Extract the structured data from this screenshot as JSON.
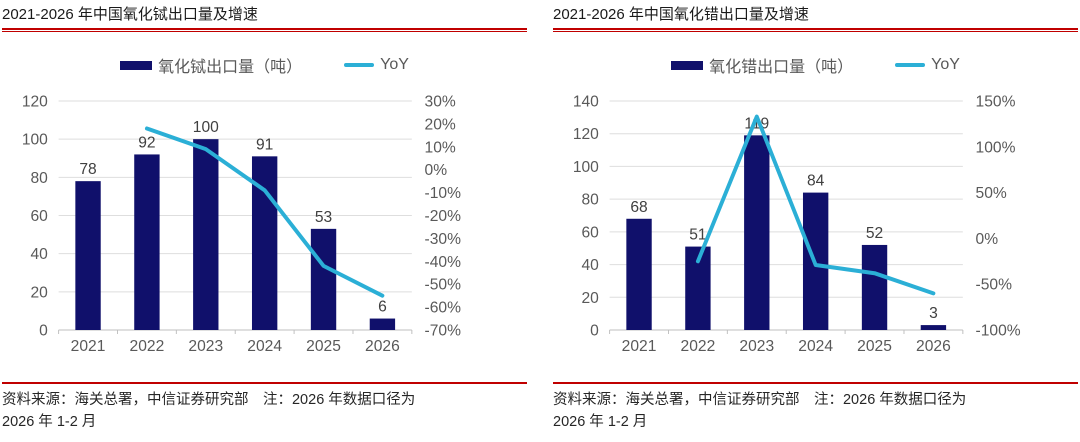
{
  "page": {
    "source_line1": "资料来源：海关总署，中信证券研究部　注：2026 年数据口径为",
    "source_line2": "2026 年 1-2 月"
  },
  "colors": {
    "bar": "#10106b",
    "line": "#2bafd6",
    "accent_red": "#c00000",
    "grid": "#dedede",
    "axis": "#bfbfbf",
    "title_text": "#1a1a1a",
    "axis_text": "#595959",
    "value_text": "#404040"
  },
  "charts": [
    {
      "title": "2021-2026 年中国氧化铽出口量及增速",
      "legend": {
        "bar_label": "氧化铽出口量（吨）",
        "line_label": "YoY"
      },
      "chart_data": {
        "type": "bar+line",
        "categories": [
          "2021",
          "2022",
          "2023",
          "2024",
          "2025",
          "2026"
        ],
        "series": [
          {
            "name": "氧化铽出口量（吨）",
            "type": "bar",
            "axis": "left",
            "values": [
              78,
              92,
              100,
              91,
              53,
              6
            ]
          },
          {
            "name": "YoY",
            "type": "line",
            "axis": "right",
            "unit": "%",
            "values": [
              null,
              18,
              9,
              -9,
              -42,
              -55
            ]
          }
        ],
        "left_axis": {
          "min": 0,
          "max": 120,
          "step": 20
        },
        "right_axis": {
          "min": -70,
          "max": 30,
          "ticks": [
            30,
            20,
            10,
            0,
            -10,
            -20,
            -30,
            -40,
            -50,
            -60,
            -70
          ]
        },
        "grid": true,
        "legend_position": "top"
      }
    },
    {
      "title": "2021-2026 年中国氧化错出口量及增速",
      "legend": {
        "bar_label": "氧化错出口量（吨）",
        "line_label": "YoY"
      },
      "chart_data": {
        "type": "bar+line",
        "categories": [
          "2021",
          "2022",
          "2023",
          "2024",
          "2025",
          "2026"
        ],
        "series": [
          {
            "name": "氧化错出口量（吨）",
            "type": "bar",
            "axis": "left",
            "values": [
              68,
              51,
              119,
              84,
              52,
              3
            ]
          },
          {
            "name": "YoY",
            "type": "line",
            "axis": "right",
            "unit": "%",
            "values": [
              null,
              -25,
              133,
              -29,
              -38,
              -60
            ]
          }
        ],
        "left_axis": {
          "min": 0,
          "max": 140,
          "step": 20
        },
        "right_axis": {
          "min": -100,
          "max": 150,
          "ticks": [
            150,
            100,
            50,
            0,
            -50,
            -100
          ]
        },
        "grid": true,
        "legend_position": "top"
      }
    }
  ]
}
